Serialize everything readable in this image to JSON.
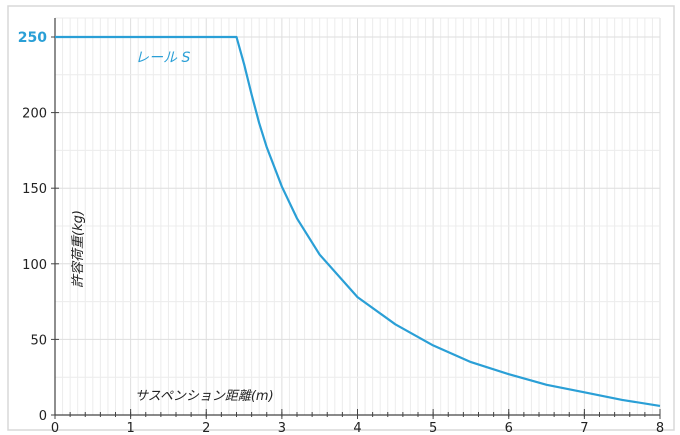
{
  "chart_data": {
    "type": "line",
    "xlabel": "サスペンション距離(m)",
    "ylabel": "許容荷重(kg)",
    "xlim": [
      0,
      8
    ],
    "ylim": [
      0,
      250
    ],
    "x_ticks": [
      0,
      1,
      2,
      3,
      4,
      5,
      6,
      7,
      8
    ],
    "y_ticks": [
      0,
      50,
      100,
      150,
      200,
      250
    ],
    "highlight_y_tick": 250,
    "grid": true,
    "series": [
      {
        "name": "レール S",
        "color": "#2a9fd6",
        "x": [
          0,
          2.4,
          2.5,
          2.6,
          2.7,
          2.8,
          3.0,
          3.2,
          3.5,
          4.0,
          4.5,
          5.0,
          5.5,
          6.0,
          6.5,
          7.0,
          7.5,
          8.0
        ],
        "y": [
          250,
          250,
          232,
          212,
          193,
          177,
          151,
          130,
          106,
          78,
          60,
          46,
          35,
          27,
          20,
          15,
          10,
          6
        ]
      }
    ]
  }
}
